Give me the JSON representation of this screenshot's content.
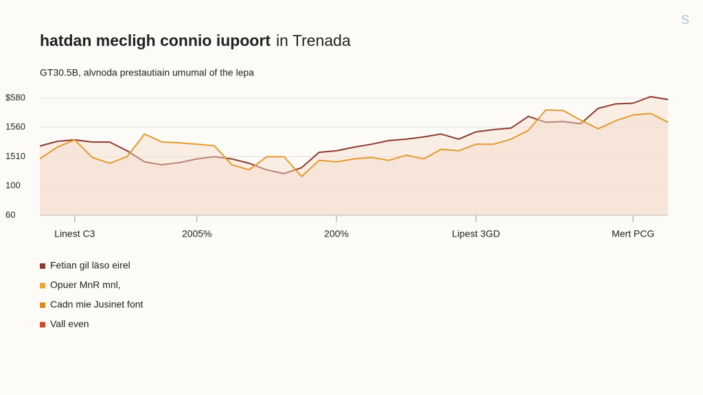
{
  "chart_data": {
    "type": "line",
    "title": "hatdan mecligh connio iupoort",
    "title_tail": "in Trenada",
    "subtitle": "GT30.5B, alvnoda prestautiain umumal of the lepa",
    "corner_mark": "S",
    "x": [
      0,
      1,
      2,
      3,
      4,
      5,
      6,
      7,
      8,
      9,
      10,
      11,
      12,
      13,
      14,
      15,
      16,
      17,
      18,
      19,
      20,
      21,
      22,
      23,
      24,
      25,
      26,
      27,
      28,
      29,
      30,
      31,
      32,
      33,
      34,
      35,
      36
    ],
    "xlim": [
      0,
      36
    ],
    "xticks": [
      {
        "value": 2,
        "label": "Linest C3"
      },
      {
        "value": 9,
        "label": "2005%"
      },
      {
        "value": 17,
        "label": "200%"
      },
      {
        "value": 25,
        "label": "Lipest 3GD"
      },
      {
        "value": 34,
        "label": "Mert PCG"
      }
    ],
    "ylim": [
      60,
      225
    ],
    "yticks": [
      60,
      100,
      {
        "value": 140,
        "label": "1510"
      },
      {
        "value": 180,
        "label": "1560"
      },
      {
        "value": 220,
        "label": "$580"
      }
    ],
    "grid": true,
    "area_color": "#f6dccb",
    "series": [
      {
        "color": "#8b3a2e",
        "values": [
          154.5,
          161,
          163,
          160,
          160,
          148,
          133,
          129,
          132,
          137,
          140,
          137,
          131,
          122,
          117,
          125,
          146,
          148,
          153,
          157,
          162,
          164,
          167,
          171,
          164,
          174,
          177,
          179,
          195,
          187,
          188,
          185,
          206,
          212,
          213,
          222,
          218
        ]
      },
      {
        "color": "#e39a2c",
        "values": [
          137,
          153,
          163,
          139,
          131,
          140,
          171,
          160,
          159,
          157,
          155,
          129,
          122,
          140,
          140,
          113,
          135,
          133,
          137,
          139,
          135,
          142,
          137,
          150,
          148,
          157,
          157,
          164,
          176,
          204,
          203,
          190,
          178,
          189,
          197,
          199,
          187
        ]
      }
    ],
    "legend": [
      {
        "name": "Fetian gil läso eirel",
        "color": "#8b3a2e"
      },
      {
        "name": "Opuer MnR mnl,",
        "color": "#e8a635"
      },
      {
        "name": "Cadn mie Jusinet font",
        "color": "#e08a1e"
      },
      {
        "name": "Vall even",
        "color": "#cc4a26"
      }
    ]
  }
}
